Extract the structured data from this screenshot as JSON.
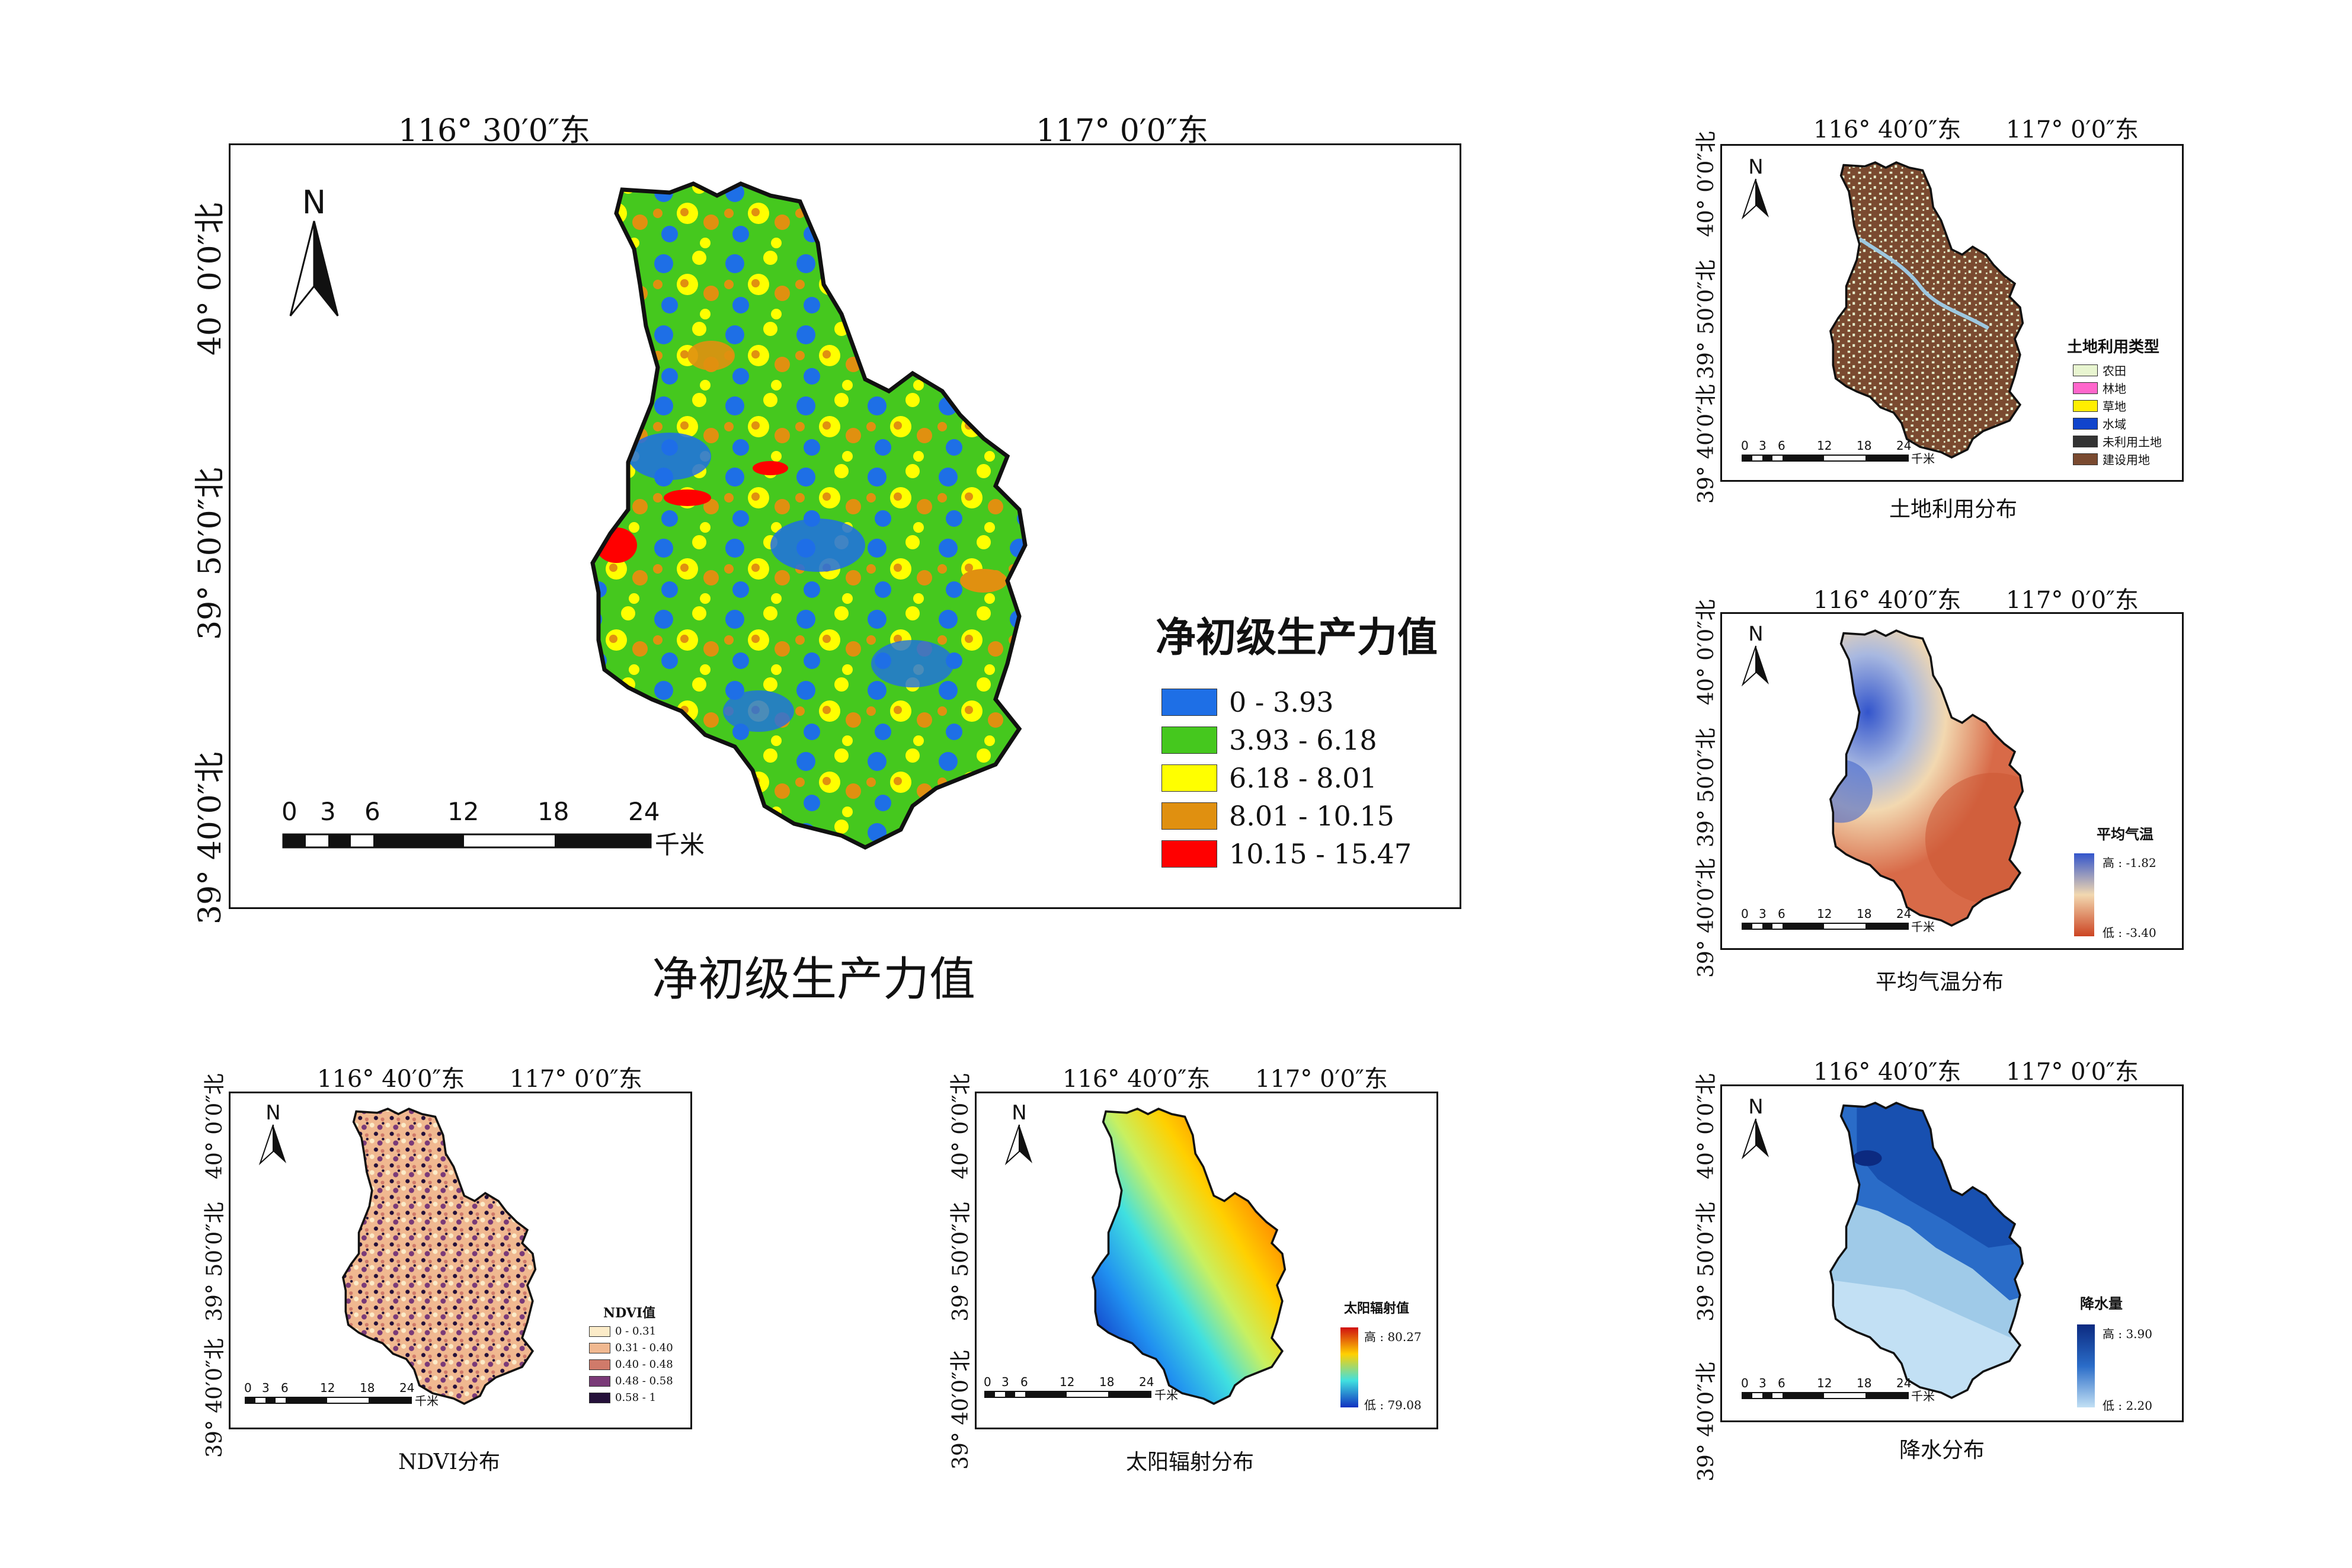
{
  "main_map": {
    "title": "净初级生产力值",
    "lon_labels": [
      "116° 30′0″东",
      "117° 0′0″东"
    ],
    "lat_labels": [
      "40° 0′0″北",
      "39° 50′0″北",
      "39° 40′0″北"
    ],
    "north": "N",
    "scale_ticks": [
      "0",
      "3",
      "6",
      "12",
      "18",
      "24"
    ],
    "scale_unit": "千米",
    "legend": {
      "title": "净初级生产力值",
      "items": [
        {
          "label": "0  -  3.93",
          "color": "#1e6fe6"
        },
        {
          "label": "3.93  -  6.18",
          "color": "#45c81e"
        },
        {
          "label": "6.18  -  8.01",
          "color": "#ffff00"
        },
        {
          "label": "8.01  -  10.15",
          "color": "#e09010"
        },
        {
          "label": "10.15  -  15.47",
          "color": "#ff0000"
        }
      ]
    },
    "caption": "净初级生产力值"
  },
  "small_maps": {
    "lon_labels": [
      "116° 40′0″东",
      "117° 0′0″东"
    ],
    "lat_labels": [
      "40° 0′0″北",
      "39° 50′0″北",
      "39° 40′0″北"
    ],
    "north": "N",
    "scale_ticks": [
      "0",
      "3",
      "6",
      "12",
      "18",
      "24"
    ],
    "scale_unit": "千米"
  },
  "landuse": {
    "caption": "土地利用分布",
    "legend_title": "土地利用类型",
    "items": [
      {
        "label": "农田",
        "color": "#e8f5d0"
      },
      {
        "label": "林地",
        "color": "#ff66cc"
      },
      {
        "label": "草地",
        "color": "#ffee00"
      },
      {
        "label": "水域",
        "color": "#1044cc"
      },
      {
        "label": "未利用土地",
        "color": "#333333"
      },
      {
        "label": "建设用地",
        "color": "#7a4a30"
      }
    ]
  },
  "temperature": {
    "caption": "平均气温分布",
    "legend_title": "平均气温",
    "high": "高 : -1.82",
    "low": "低 : -3.40",
    "color_high": "#3355cc",
    "color_low": "#cc4422"
  },
  "ndvi": {
    "caption": "NDVI分布",
    "legend_title": "NDVI值",
    "items": [
      {
        "label": "0 - 0.31",
        "color": "#fbebc8"
      },
      {
        "label": "0.31 - 0.40",
        "color": "#f0b890"
      },
      {
        "label": "0.40 - 0.48",
        "color": "#d07a6a"
      },
      {
        "label": "0.48 - 0.58",
        "color": "#7a3a78"
      },
      {
        "label": "0.58 - 1",
        "color": "#25103a"
      }
    ]
  },
  "solar": {
    "caption": "太阳辐射分布",
    "legend_title": "太阳辐射值",
    "high": "高 : 80.27",
    "low": "低 : 79.08"
  },
  "precip": {
    "caption": "降水分布",
    "legend_title": "降水量",
    "high": "高 : 3.90",
    "low": "低 : 2.20"
  }
}
